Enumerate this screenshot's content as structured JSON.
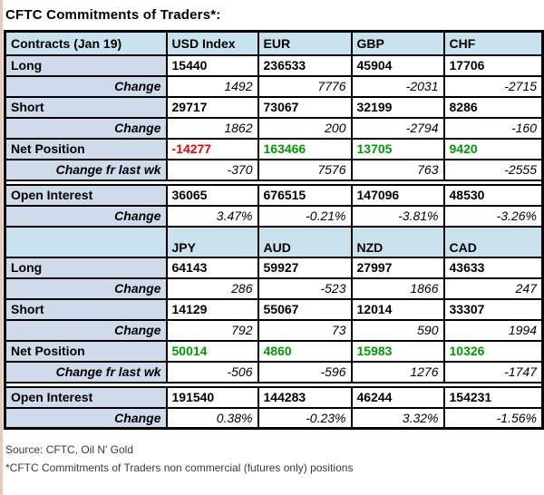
{
  "title": "CFTC Commitments of Traders*:",
  "colors": {
    "header_bg": "#c9e3ee",
    "label_bg": "#cfdaeb",
    "net_positive": "#009900",
    "net_negative": "#ee0000",
    "edge_strip": "#ecc9bd"
  },
  "chart_data": {
    "type": "table",
    "title": "CFTC Commitments of Traders*:",
    "sections": [
      {
        "header": [
          "Contracts (Jan 19)",
          "USD Index",
          "EUR",
          "GBP",
          "CHF"
        ],
        "rows": [
          {
            "label": "Long",
            "type": "main",
            "values": [
              "15440",
              "236533",
              "45904",
              "17706"
            ]
          },
          {
            "label": "Change",
            "type": "change",
            "values": [
              "1492",
              "7776",
              "-2031",
              "-2715"
            ]
          },
          {
            "label": "Short",
            "type": "main",
            "values": [
              "29717",
              "73067",
              "32199",
              "8286"
            ]
          },
          {
            "label": "Change",
            "type": "change",
            "values": [
              "1862",
              "200",
              "-2794",
              "-160"
            ]
          },
          {
            "label": "Net Position",
            "type": "net",
            "values": [
              "-14277",
              "163466",
              "13705",
              "9420"
            ]
          },
          {
            "label": "Change fr last wk",
            "type": "change",
            "values": [
              "-370",
              "7576",
              "763",
              "-2555"
            ]
          },
          {
            "label": "",
            "type": "spacer",
            "values": []
          },
          {
            "label": "Open Interest",
            "type": "main",
            "values": [
              "36065",
              "676515",
              "147096",
              "48530"
            ]
          },
          {
            "label": "Change",
            "type": "change",
            "values": [
              "3.47%",
              "-0.21%",
              "-3.81%",
              "-3.26%"
            ]
          }
        ]
      },
      {
        "header": [
          "",
          "JPY",
          "AUD",
          "NZD",
          "CAD"
        ],
        "rows": [
          {
            "label": "Long",
            "type": "main",
            "values": [
              "64143",
              "59927",
              "27997",
              "43633"
            ]
          },
          {
            "label": "Change",
            "type": "change",
            "values": [
              "286",
              "-523",
              "1866",
              "247"
            ]
          },
          {
            "label": "Short",
            "type": "main",
            "values": [
              "14129",
              "55067",
              "12014",
              "33307"
            ]
          },
          {
            "label": "Change",
            "type": "change",
            "values": [
              "792",
              "73",
              "590",
              "1994"
            ]
          },
          {
            "label": "Net Position",
            "type": "net",
            "values": [
              "50014",
              "4860",
              "15983",
              "10326"
            ]
          },
          {
            "label": "Change fr last wk",
            "type": "change",
            "values": [
              "-506",
              "-596",
              "1276",
              "-1747"
            ]
          },
          {
            "label": "",
            "type": "spacer",
            "values": []
          },
          {
            "label": "Open Interest",
            "type": "main",
            "values": [
              "191540",
              "144283",
              "46244",
              "154231"
            ]
          },
          {
            "label": "Change",
            "type": "change",
            "values": [
              "0.38%",
              "-0.23%",
              "3.32%",
              "-1.56%"
            ]
          }
        ]
      }
    ]
  },
  "footer": {
    "source": "Source: CFTC, Oil N' Gold",
    "note": "*CFTC Commitments of Traders non commercial (futures only) positions"
  }
}
